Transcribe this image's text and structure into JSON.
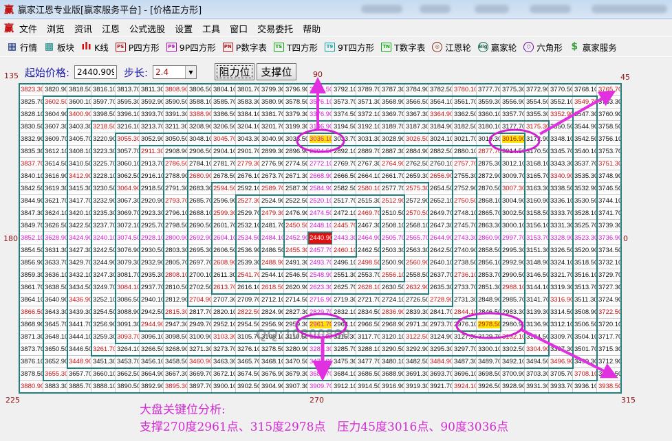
{
  "window": {
    "title": "赢家江恩专业版[赢家服务平台] - [价格正方形]",
    "logo": "赢"
  },
  "menu": {
    "logo": "赢",
    "items": [
      "文件",
      "浏览",
      "资讯",
      "江恩",
      "公式选股",
      "设置",
      "工具",
      "窗口",
      "交易委托",
      "帮助"
    ]
  },
  "toolbar": {
    "items": [
      {
        "label": "行情",
        "icon": "quote-table-icon",
        "glyph": "▦",
        "color": "#1a3a8a"
      },
      {
        "label": "板块",
        "icon": "sector-blocks-icon",
        "glyph": "▩",
        "color": "#1a8a8a"
      },
      {
        "label": "K线",
        "icon": "candlestick-icon",
        "glyph": "ılı",
        "color": "#d01010"
      },
      {
        "label": "P四方形",
        "icon": "ps-icon",
        "glyph": "PS",
        "color": "#b01010"
      },
      {
        "label": "9P四方形",
        "icon": "p9-icon",
        "glyph": "P9",
        "color": "#b010b0"
      },
      {
        "label": "P数字表",
        "icon": "pn-icon",
        "glyph": "PN",
        "color": "#b01010"
      },
      {
        "label": "T四方形",
        "icon": "ts-icon",
        "glyph": "TS",
        "color": "#10a010"
      },
      {
        "label": "9T四方形",
        "icon": "t9-icon",
        "glyph": "T9",
        "color": "#10a0a0"
      },
      {
        "label": "T数字表",
        "icon": "tn-icon",
        "glyph": "TN",
        "color": "#10a010"
      },
      {
        "label": "江恩轮",
        "icon": "gann-wheel-icon",
        "glyph": "◎",
        "color": "#8a2a10"
      },
      {
        "label": "赢家轮",
        "icon": "big-wheel-icon",
        "glyph": "Big",
        "color": "#1a6a4a"
      },
      {
        "label": "六角形",
        "icon": "hexagon-icon",
        "glyph": "⬡",
        "color": "#6a10a0"
      },
      {
        "label": "赢家服务",
        "icon": "dollar-icon",
        "glyph": "$",
        "color": "#3aa03a"
      }
    ]
  },
  "controls": {
    "start_price_label": "起始价格:",
    "start_price": "2440.9099",
    "step_label": "步长:",
    "step": "2.4",
    "resistance_button": "阻力位",
    "support_button": "支撑位"
  },
  "angles": {
    "a135": "135",
    "a90": "90",
    "a45": "45",
    "a180": "180",
    "a0": "0",
    "a225": "225",
    "a270": "270",
    "a315": "315"
  },
  "colors": {
    "accent_magenta": "#d418d4",
    "red": "#c81010",
    "ring_border": "#1f7f7f",
    "highlight": "#ffe600",
    "center_bg": "#e01010"
  },
  "highlighted_values": [
    "3036.10",
    "3016.90",
    "2961.70",
    "2978.50"
  ],
  "watermark": "QQ:10800860",
  "analysis": {
    "title": "大盘关键位分析:",
    "line": "支撑270度2961点、315度2978点　压力45度3016点、90度3036点"
  },
  "grid": [
    [
      "3823.30",
      "3820.90",
      "3818.50",
      "3816.10",
      "3813.70",
      "3811.30",
      "3808.90",
      "3806.50",
      "3804.10",
      "3801.70",
      "3799.30",
      "3796.90",
      "3794.50",
      "3792.10",
      "3789.70",
      "3787.30",
      "3784.90",
      "3782.50",
      "3780.10",
      "3777.70",
      "3775.30",
      "3772.90",
      "3770.50",
      "3768.10",
      "3765.70"
    ],
    [
      "3825.70",
      "3602.50",
      "3600.10",
      "3597.70",
      "3595.30",
      "3592.90",
      "3590.50",
      "3588.10",
      "3585.70",
      "3583.30",
      "3580.90",
      "3578.50",
      "3576.10",
      "3573.70",
      "3571.30",
      "3568.90",
      "3566.50",
      "3564.10",
      "3561.70",
      "3559.30",
      "3556.90",
      "3554.50",
      "3552.10",
      "3549.70",
      "3763.30"
    ],
    [
      "3828.10",
      "3604.90",
      "3400.90",
      "3398.50",
      "3396.10",
      "3393.70",
      "3391.30",
      "3388.90",
      "3386.50",
      "3384.10",
      "3381.70",
      "3379.30",
      "3376.90",
      "3374.50",
      "3372.10",
      "3369.70",
      "3367.30",
      "3364.90",
      "3362.50",
      "3360.10",
      "3357.70",
      "3355.30",
      "3352.90",
      "3547.30",
      "3760.90"
    ],
    [
      "3830.50",
      "3607.30",
      "3403.30",
      "3218.50",
      "3216.10",
      "3213.70",
      "3211.30",
      "3208.90",
      "3206.50",
      "3204.10",
      "3201.70",
      "3199.30",
      "3196.90",
      "3194.50",
      "3192.10",
      "3189.70",
      "3187.30",
      "3184.90",
      "3182.50",
      "3180.10",
      "3177.70",
      "3175.30",
      "3350.50",
      "3544.90",
      "3758.50"
    ],
    [
      "3832.90",
      "3609.70",
      "3405.70",
      "3220.90",
      "3055.30",
      "3052.90",
      "3050.50",
      "3048.10",
      "3045.70",
      "3043.30",
      "3040.90",
      "3038.50",
      "3036.10",
      "3033.70",
      "3031.30",
      "3028.90",
      "3026.50",
      "3024.10",
      "3021.70",
      "3019.30",
      "3016.90",
      "3172.90",
      "3348.10",
      "3542.50",
      "3756.10"
    ],
    [
      "3835.30",
      "3612.10",
      "3408.10",
      "3223.30",
      "3057.70",
      "2911.30",
      "2908.90",
      "2906.50",
      "2904.10",
      "2901.70",
      "2899.30",
      "2896.90",
      "2894.50",
      "2892.10",
      "2889.70",
      "2887.30",
      "2884.90",
      "2882.50",
      "2880.10",
      "2877.70",
      "3014.50",
      "3170.50",
      "3345.70",
      "3540.10",
      "3753.70"
    ],
    [
      "3837.70",
      "3614.50",
      "3410.50",
      "3225.70",
      "3060.10",
      "2913.70",
      "2786.50",
      "2784.10",
      "2781.70",
      "2779.30",
      "2776.90",
      "2774.50",
      "2772.10",
      "2769.70",
      "2767.30",
      "2764.90",
      "2762.50",
      "2760.10",
      "2757.70",
      "2875.30",
      "3012.10",
      "3168.10",
      "3343.30",
      "3537.70",
      "3751.30"
    ],
    [
      "3840.10",
      "3616.90",
      "3412.90",
      "3228.10",
      "3062.50",
      "2916.10",
      "2788.90",
      "2680.90",
      "2678.50",
      "2676.10",
      "2673.70",
      "2671.30",
      "2668.90",
      "2666.50",
      "2664.10",
      "2661.70",
      "2659.30",
      "2656.90",
      "2755.30",
      "2872.90",
      "3009.70",
      "3165.70",
      "3340.90",
      "3535.30",
      "3748.90"
    ],
    [
      "3842.50",
      "3619.30",
      "3415.30",
      "3230.50",
      "3064.90",
      "2918.50",
      "2791.30",
      "2683.30",
      "2594.50",
      "2592.10",
      "2589.70",
      "2587.30",
      "2584.90",
      "2582.50",
      "2580.10",
      "2577.70",
      "2575.30",
      "2654.50",
      "2752.90",
      "2870.50",
      "3007.30",
      "3163.30",
      "3338.50",
      "3532.90",
      "3746.50"
    ],
    [
      "3844.90",
      "3621.70",
      "3417.70",
      "3232.90",
      "3067.30",
      "2920.90",
      "2793.70",
      "2685.70",
      "2596.90",
      "2527.30",
      "2524.90",
      "2522.50",
      "2520.10",
      "2517.70",
      "2515.30",
      "2512.90",
      "2572.90",
      "2652.10",
      "2750.50",
      "2868.10",
      "3004.90",
      "3160.90",
      "3336.10",
      "3530.50",
      "3744.10"
    ],
    [
      "3847.30",
      "3624.10",
      "3420.10",
      "3235.30",
      "3069.70",
      "2923.30",
      "2796.10",
      "2688.10",
      "2599.30",
      "2529.70",
      "2479.30",
      "2476.90",
      "2474.50",
      "2472.10",
      "2469.70",
      "2510.50",
      "2570.50",
      "2649.70",
      "2748.10",
      "2865.70",
      "3002.50",
      "3158.50",
      "3333.70",
      "3528.10",
      "3741.70"
    ],
    [
      "3849.70",
      "3626.50",
      "3422.50",
      "3237.70",
      "3072.10",
      "2925.70",
      "2798.50",
      "2690.50",
      "2601.70",
      "2532.10",
      "2481.70",
      "2450.50",
      "2448.10",
      "2445.70",
      "2467.30",
      "2508.10",
      "2568.10",
      "2647.30",
      "2745.70",
      "2863.30",
      "3000.10",
      "3156.10",
      "3331.30",
      "3525.70",
      "3739.30"
    ],
    [
      "3852.10",
      "3628.90",
      "3424.90",
      "3240.10",
      "3074.50",
      "2928.10",
      "2800.90",
      "2692.90",
      "2604.10",
      "2534.50",
      "2484.10",
      "2452.90",
      "2440.90",
      "2443.30",
      "2464.90",
      "2505.70",
      "2565.70",
      "2644.90",
      "2743.30",
      "2860.90",
      "2997.70",
      "3153.70",
      "3328.90",
      "3523.30",
      "3736.90"
    ],
    [
      "3854.50",
      "3631.30",
      "3427.30",
      "3242.50",
      "3076.90",
      "2930.50",
      "2803.30",
      "2695.30",
      "2606.50",
      "2536.90",
      "2486.50",
      "2455.30",
      "2457.70",
      "2460.10",
      "2462.50",
      "2503.30",
      "2563.30",
      "2642.50",
      "2740.90",
      "2858.50",
      "2995.30",
      "3151.30",
      "3326.50",
      "3520.90",
      "3734.50"
    ],
    [
      "3856.90",
      "3633.70",
      "3429.70",
      "3244.90",
      "3079.30",
      "2932.90",
      "2805.70",
      "2697.70",
      "2608.90",
      "2539.30",
      "2488.90",
      "2491.30",
      "2493.70",
      "2496.10",
      "2498.50",
      "2500.90",
      "2560.90",
      "2640.10",
      "2738.50",
      "2856.10",
      "2992.90",
      "3148.90",
      "3324.10",
      "3518.50",
      "3732.10"
    ],
    [
      "3859.30",
      "3636.10",
      "3432.10",
      "3247.30",
      "3081.70",
      "2935.30",
      "2808.10",
      "2700.10",
      "2611.30",
      "2541.70",
      "2544.10",
      "2546.50",
      "2548.90",
      "2551.30",
      "2553.70",
      "2556.10",
      "2558.50",
      "2637.70",
      "2736.10",
      "2853.70",
      "2990.50",
      "3146.50",
      "3321.70",
      "3516.10",
      "3729.70"
    ],
    [
      "3861.70",
      "3638.50",
      "3434.50",
      "3249.70",
      "3084.10",
      "2937.70",
      "2810.50",
      "2702.50",
      "2613.70",
      "2616.10",
      "2618.50",
      "2620.90",
      "2623.30",
      "2625.70",
      "2628.10",
      "2630.50",
      "2632.90",
      "2635.30",
      "2733.70",
      "2851.30",
      "2988.10",
      "3144.10",
      "3319.30",
      "3513.70",
      "3727.30"
    ],
    [
      "3864.10",
      "3640.90",
      "3436.90",
      "3252.10",
      "3086.50",
      "2940.10",
      "2812.90",
      "2704.90",
      "2707.30",
      "2709.70",
      "2712.10",
      "2714.50",
      "2716.90",
      "2719.30",
      "2721.70",
      "2724.10",
      "2726.50",
      "2728.90",
      "2731.30",
      "2848.90",
      "2985.70",
      "3141.70",
      "3316.90",
      "3511.30",
      "3724.90"
    ],
    [
      "3866.50",
      "3643.30",
      "3439.30",
      "3254.50",
      "3088.90",
      "2942.50",
      "2815.30",
      "2817.70",
      "2820.10",
      "2822.50",
      "2824.90",
      "2827.30",
      "2829.70",
      "2832.10",
      "2834.50",
      "2836.90",
      "2839.30",
      "2841.70",
      "2844.10",
      "2846.50",
      "2983.30",
      "3139.30",
      "3314.50",
      "3508.90",
      "3722.50"
    ],
    [
      "3868.90",
      "3645.70",
      "3441.70",
      "3256.90",
      "3091.30",
      "2944.90",
      "2947.30",
      "2949.70",
      "2952.10",
      "2954.50",
      "2956.90",
      "2959.30",
      "2961.70",
      "2964.10",
      "2966.50",
      "2968.90",
      "2971.30",
      "2973.70",
      "2976.10",
      "2978.50",
      "2980.90",
      "3136.90",
      "3312.10",
      "3506.50",
      "3720.10"
    ],
    [
      "3871.30",
      "3648.10",
      "3444.10",
      "3259.30",
      "3093.70",
      "3096.10",
      "3098.50",
      "3100.90",
      "3103.30",
      "3105.70",
      "3108.10",
      "3110.50",
      "3112.90",
      "3115.30",
      "3117.70",
      "3120.10",
      "3122.50",
      "3124.90",
      "3127.30",
      "3129.70",
      "3132.10",
      "3134.50",
      "3309.70",
      "3504.10",
      "3717.70"
    ],
    [
      "3873.70",
      "3650.50",
      "3446.50",
      "3261.70",
      "3264.10",
      "3266.50",
      "3268.90",
      "3271.30",
      "3273.70",
      "3276.10",
      "3278.50",
      "3280.90",
      "3283.30",
      "3285.70",
      "3288.10",
      "3290.50",
      "3292.90",
      "3295.30",
      "3297.70",
      "3300.10",
      "3302.50",
      "3304.90",
      "3307.30",
      "3501.70",
      "3715.30"
    ],
    [
      "3876.10",
      "3652.90",
      "3448.90",
      "3451.30",
      "3453.70",
      "3456.10",
      "3458.50",
      "3460.90",
      "3463.30",
      "3465.70",
      "3468.10",
      "3470.50",
      "3472.90",
      "3475.30",
      "3477.70",
      "3480.10",
      "3482.50",
      "3484.90",
      "3487.30",
      "3489.70",
      "3492.10",
      "3494.50",
      "3496.90",
      "3499.30",
      "3712.90"
    ],
    [
      "3878.50",
      "3655.30",
      "3657.70",
      "3660.10",
      "3662.50",
      "3664.90",
      "3667.30",
      "3669.70",
      "3672.10",
      "3674.50",
      "3676.90",
      "3679.30",
      "3681.70",
      "3684.10",
      "3686.50",
      "3688.90",
      "3691.30",
      "3693.70",
      "3696.10",
      "3698.50",
      "3700.90",
      "3703.30",
      "3705.70",
      "3708.10",
      "3710.50"
    ],
    [
      "3880.90",
      "3883.30",
      "3885.70",
      "3888.10",
      "3890.50",
      "3892.90",
      "3895.30",
      "3897.70",
      "3900.10",
      "3902.50",
      "3904.90",
      "3907.30",
      "3909.70",
      "3912.10",
      "3914.50",
      "3916.90",
      "3919.30",
      "3921.70",
      "3924.10",
      "3926.50",
      "3928.90",
      "3931.30",
      "3933.70",
      "3936.10",
      "3938.50"
    ]
  ]
}
